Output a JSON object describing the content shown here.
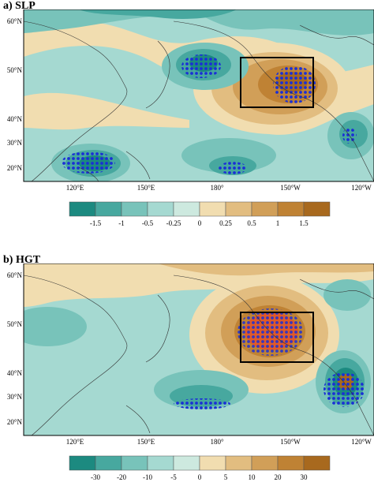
{
  "panels": [
    {
      "title": "a) SLP",
      "lat_labels": [
        "60°N",
        "50°N",
        "40°N",
        "30°N",
        "20°N"
      ],
      "lon_labels": [
        "120°E",
        "150°E",
        "180°",
        "150°W",
        "120°W"
      ],
      "colorbar_labels": [
        "-1.5",
        "-1",
        "-0.5",
        "-0.25",
        "0",
        "0.25",
        "0.5",
        "1",
        "1.5"
      ],
      "colorbar_colors": [
        "#1c8a80",
        "#47a89f",
        "#78c3ba",
        "#a5d9d1",
        "#cde9df",
        "#f1ddb0",
        "#e2bd80",
        "#d19f58",
        "#bf8234",
        "#a8691e"
      ]
    },
    {
      "title": "b) HGT",
      "lat_labels": [
        "60°N",
        "50°N",
        "40°N",
        "30°N",
        "20°N"
      ],
      "lon_labels": [
        "120°E",
        "150°E",
        "180°",
        "150°W",
        "120°W"
      ],
      "colorbar_labels": [
        "-30",
        "-20",
        "-10",
        "-5",
        "0",
        "5",
        "10",
        "20",
        "30"
      ],
      "colorbar_colors": [
        "#1c8a80",
        "#47a89f",
        "#78c3ba",
        "#a5d9d1",
        "#cde9df",
        "#f1ddb0",
        "#e2bd80",
        "#d19f58",
        "#bf8234",
        "#a8691e"
      ]
    }
  ],
  "colors": {
    "stipple": "#1a2fd6",
    "box": "#000000"
  }
}
